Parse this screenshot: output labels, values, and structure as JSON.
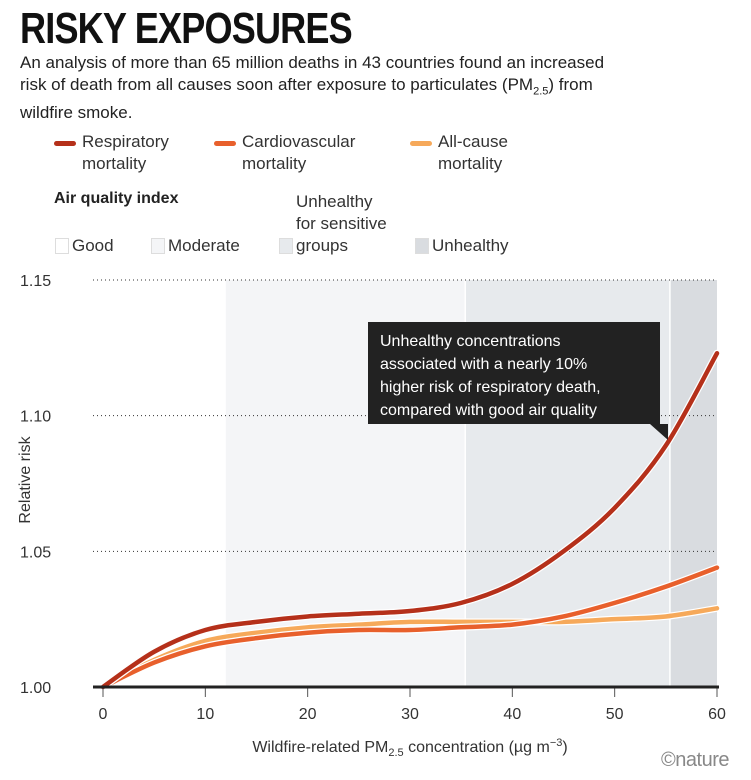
{
  "title": "RISKY EXPOSURES",
  "subtitle_parts": [
    "An analysis of more than 65 million deaths in 43 countries found an increased risk of death from all causes soon after exposure to particulates (PM",
    "2.5",
    ") from wildfire smoke."
  ],
  "legend": [
    {
      "line1": "Respiratory",
      "line2": "mortality",
      "color": "#b5301a"
    },
    {
      "line1": "Cardiovascular",
      "line2": "mortality",
      "color": "#e8602c"
    },
    {
      "line1": "All-cause",
      "line2": "mortality",
      "color": "#f6a95a"
    }
  ],
  "aqi": {
    "heading": "Air quality index",
    "items": [
      {
        "label": "Good",
        "color": "#ffffff"
      },
      {
        "label": "Moderate",
        "color": "#f4f5f7"
      },
      {
        "label": "Unhealthy for sensitive groups",
        "line1": "Unhealthy",
        "line2": "for sensitive",
        "line3": "groups",
        "color": "#e7eaed"
      },
      {
        "label": "Unhealthy",
        "color": "#d9dce0"
      }
    ]
  },
  "annotation": [
    "Unhealthy concentrations",
    "associated with a nearly 10%",
    "higher risk of respiratory death,",
    "compared with good air quality"
  ],
  "credit": "©nature",
  "chart_data": {
    "type": "line",
    "xlabel_parts": [
      "Wildfire-related PM",
      "2.5",
      " concentration (µg m",
      "−3",
      ")"
    ],
    "ylabel": "Relative risk",
    "xlim": [
      0,
      60
    ],
    "ylim": [
      1.0,
      1.15
    ],
    "xticks": [
      "0",
      "10",
      "20",
      "30",
      "40",
      "50",
      "60"
    ],
    "yticks": [
      "1.00",
      "1.05",
      "1.10",
      "1.15"
    ],
    "grid": "horizontal dotted",
    "bands": [
      {
        "name": "Good",
        "from": 0,
        "to": 12
      },
      {
        "name": "Moderate",
        "from": 12,
        "to": 35.4
      },
      {
        "name": "Unhealthy for sensitive groups",
        "from": 35.4,
        "to": 55.4
      },
      {
        "name": "Unhealthy",
        "from": 55.4,
        "to": 60
      }
    ],
    "x": [
      0,
      5,
      10,
      15,
      20,
      25,
      30,
      35,
      40,
      45,
      50,
      55,
      60
    ],
    "series": [
      {
        "name": "Respiratory mortality",
        "color": "#b5301a",
        "values": [
          1.0,
          1.013,
          1.021,
          1.024,
          1.026,
          1.027,
          1.028,
          1.031,
          1.038,
          1.05,
          1.066,
          1.089,
          1.123
        ]
      },
      {
        "name": "Cardiovascular mortality",
        "color": "#e8602c",
        "values": [
          1.0,
          1.009,
          1.015,
          1.018,
          1.02,
          1.021,
          1.021,
          1.022,
          1.023,
          1.026,
          1.031,
          1.037,
          1.044
        ]
      },
      {
        "name": "All-cause mortality",
        "color": "#f6a95a",
        "values": [
          1.0,
          1.01,
          1.017,
          1.02,
          1.022,
          1.023,
          1.024,
          1.024,
          1.024,
          1.024,
          1.025,
          1.026,
          1.029
        ]
      }
    ]
  }
}
